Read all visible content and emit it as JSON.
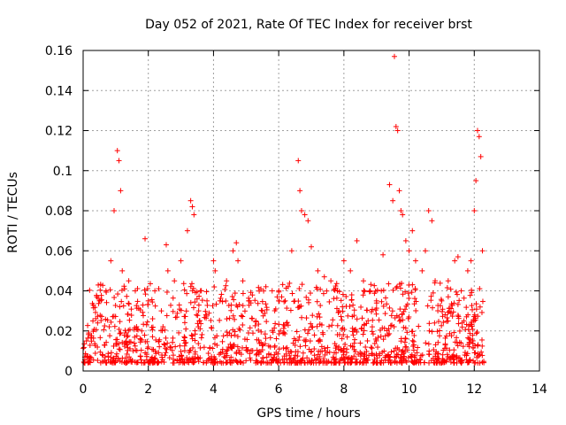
{
  "chart_data": {
    "type": "scatter",
    "title": "Day 052 of 2021, Rate Of TEC Index for receiver brst",
    "xlabel": "GPS time / hours",
    "ylabel": "ROTI / TECUs",
    "xlim": [
      0,
      14
    ],
    "ylim": [
      0,
      0.16
    ],
    "x_ticks": [
      0,
      2,
      4,
      6,
      8,
      10,
      12,
      14
    ],
    "y_ticks": [
      0,
      0.02,
      0.04,
      0.06,
      0.08,
      0.1,
      0.12,
      0.14,
      0.16
    ],
    "x_tick_labels": [
      "0",
      "2",
      "4",
      "6",
      "8",
      "10",
      "12",
      "14"
    ],
    "y_tick_labels": [
      "0",
      "0.02",
      "0.04",
      "0.06",
      "0.08",
      "0.1",
      "0.12",
      "0.14",
      "0.16"
    ],
    "grid": true,
    "legend": "none",
    "marker": "+",
    "marker_color": "#ff0000",
    "x_range_data": [
      0.0,
      12.3
    ],
    "series": [
      {
        "x": [
          0.1,
          0.3,
          0.5,
          0.7,
          0.85,
          0.95,
          1.05,
          1.1,
          1.15,
          1.2,
          1.4,
          1.6,
          1.8,
          1.9,
          2.0,
          2.2,
          2.4,
          2.55,
          2.6,
          2.8,
          3.0,
          3.2,
          3.3,
          3.35,
          3.4,
          3.6,
          3.8,
          4.0,
          4.05,
          4.2,
          4.4,
          4.6,
          4.7,
          4.75,
          4.9,
          5.1,
          5.3,
          5.5,
          5.8,
          6.0,
          6.2,
          6.4,
          6.6,
          6.65,
          6.7,
          6.8,
          6.9,
          7.0,
          7.2,
          7.4,
          7.6,
          7.8,
          8.0,
          8.2,
          8.4,
          8.6,
          8.8,
          9.0,
          9.2,
          9.4,
          9.5,
          9.55,
          9.6,
          9.65,
          9.7,
          9.75,
          9.8,
          9.9,
          10.0,
          10.1,
          10.2,
          10.4,
          10.5,
          10.6,
          10.7,
          10.8,
          11.0,
          11.2,
          11.4,
          11.5,
          11.6,
          11.8,
          11.9,
          12.0,
          12.05,
          12.1,
          12.15,
          12.2,
          12.25
        ],
        "y": [
          0.015,
          0.025,
          0.035,
          0.04,
          0.055,
          0.08,
          0.11,
          0.105,
          0.09,
          0.05,
          0.045,
          0.04,
          0.02,
          0.066,
          0.035,
          0.04,
          0.03,
          0.063,
          0.05,
          0.045,
          0.055,
          0.07,
          0.085,
          0.082,
          0.078,
          0.04,
          0.035,
          0.055,
          0.05,
          0.035,
          0.045,
          0.06,
          0.064,
          0.055,
          0.045,
          0.035,
          0.025,
          0.03,
          0.04,
          0.035,
          0.035,
          0.06,
          0.105,
          0.09,
          0.08,
          0.078,
          0.075,
          0.062,
          0.05,
          0.047,
          0.045,
          0.04,
          0.055,
          0.05,
          0.065,
          0.045,
          0.04,
          0.035,
          0.058,
          0.093,
          0.085,
          0.157,
          0.122,
          0.12,
          0.09,
          0.08,
          0.078,
          0.065,
          0.06,
          0.07,
          0.055,
          0.05,
          0.06,
          0.08,
          0.075,
          0.045,
          0.035,
          0.045,
          0.055,
          0.057,
          0.04,
          0.05,
          0.055,
          0.08,
          0.095,
          0.12,
          0.117,
          0.107,
          0.06
        ]
      }
    ]
  }
}
